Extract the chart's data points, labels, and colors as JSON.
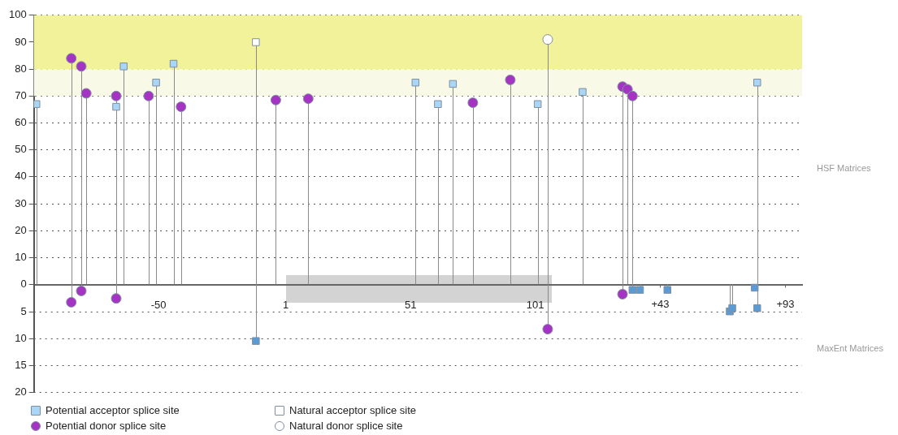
{
  "chart_data": {
    "type": "lollipop",
    "annotations": [
      "HSF Matrices",
      "MaxEnt Matrices"
    ],
    "xlim": [
      -100,
      208
    ],
    "xticks": [
      -50,
      1,
      51,
      101
    ],
    "x2lim": [
      -208,
      100
    ],
    "x2ticks": [
      {
        "value": 43,
        "label": "+43"
      },
      {
        "value": 93,
        "label": "+93"
      }
    ],
    "ylim": [
      -40,
      100
    ],
    "yticks": [
      0,
      10,
      20,
      30,
      40,
      50,
      60,
      70,
      80,
      90,
      100
    ],
    "y2lim": [
      20,
      -50
    ],
    "y2ticks": [
      5,
      10,
      15,
      20
    ],
    "grid": "y",
    "legend": "bottom left",
    "bands": [
      {
        "axis": "y",
        "from": 80,
        "to": 100,
        "color": "#f2f29b"
      },
      {
        "axis": "y",
        "from": 70,
        "to": 80,
        "color": "#f9f9e8"
      }
    ],
    "series": [
      {
        "name": "Potential acceptor splice site",
        "color": "#a9d5f7",
        "marker": "square",
        "x": [
          -99,
          -67,
          -64,
          -51,
          -44,
          53,
          62,
          68,
          102,
          120,
          190
        ],
        "values": [
          67,
          66,
          81,
          75,
          82,
          75,
          67,
          74.5,
          67,
          71.5,
          75
        ]
      },
      {
        "name": "Natural acceptor splice site",
        "color": "#ffffff",
        "marker": "square",
        "x": [
          -11
        ],
        "values": [
          90
        ]
      },
      {
        "name": "Potential donor splice site",
        "color": "#a534c4",
        "marker": "circle",
        "x": [
          -85,
          -81,
          -79,
          -67,
          -54,
          -41,
          -3,
          10,
          76,
          91,
          136,
          138,
          140
        ],
        "values": [
          84,
          81,
          71,
          70,
          70,
          66,
          68.5,
          69,
          67.5,
          76,
          73.5,
          72.5,
          70
        ]
      },
      {
        "name": "Natural donor splice site",
        "color": "#ffffff",
        "marker": "circle",
        "x": [
          106
        ],
        "values": [
          91
        ]
      },
      {
        "color": "#5b9bd5",
        "marker": "square",
        "axis": "y2",
        "x": [
          -11,
          140,
          143,
          154,
          179,
          180,
          189,
          190
        ],
        "values": [
          10.5,
          1,
          1,
          1,
          5,
          4.4,
          0.6,
          4.4
        ]
      },
      {
        "color": "#a534c4",
        "marker": "circle",
        "axis": "y2",
        "x": [
          -85,
          -81,
          -67,
          106,
          136
        ],
        "values": [
          3.3,
          1.2,
          2.6,
          8.3,
          1.8
        ]
      }
    ]
  }
}
